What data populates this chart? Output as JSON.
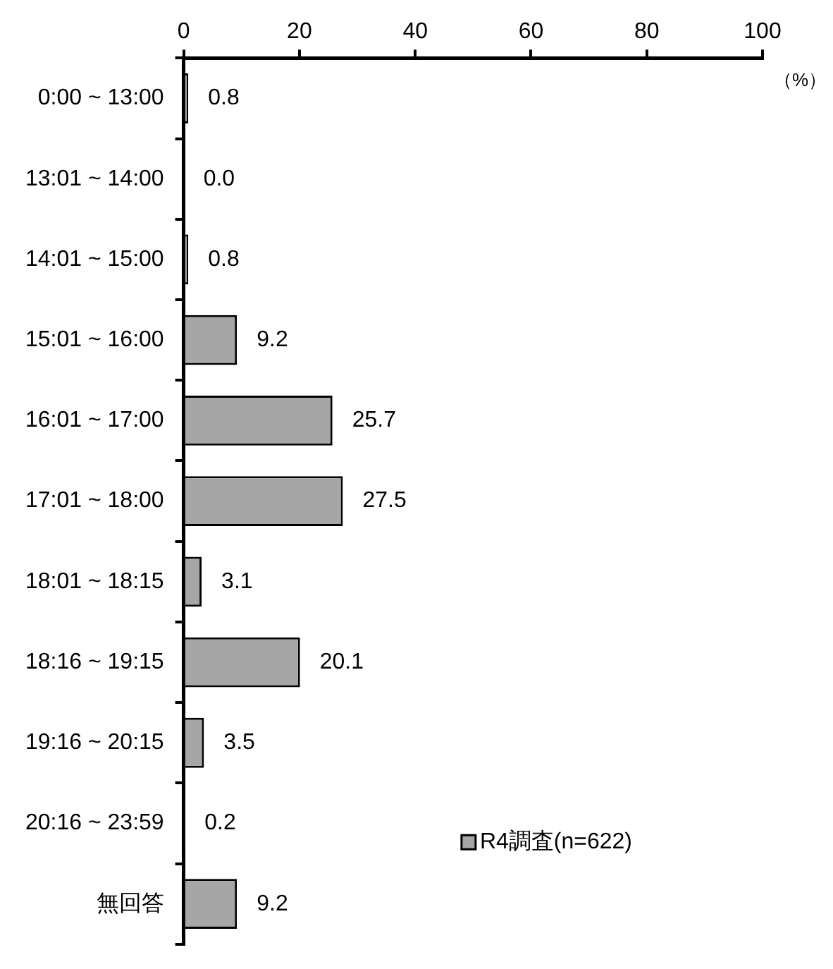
{
  "chart_data": {
    "type": "bar",
    "orientation": "horizontal",
    "xlabel": "（%）",
    "categories": [
      "0:00 ~ 13:00",
      "13:01 ~ 14:00",
      "14:01 ~ 15:00",
      "15:01 ~ 16:00",
      "16:01 ~ 17:00",
      "17:01 ~ 18:00",
      "18:01 ~ 18:15",
      "18:16 ~ 19:15",
      "19:16 ~ 20:15",
      "20:16 ~ 23:59",
      "無回答"
    ],
    "series": [
      {
        "name": "R4調査(n=622)",
        "color": "#a6a6a6",
        "values": [
          0.8,
          0.0,
          0.8,
          9.2,
          25.7,
          27.5,
          3.1,
          20.1,
          3.5,
          0.2,
          9.2
        ],
        "value_labels": [
          "0.8",
          "0.0",
          "0.8",
          "9.2",
          "25.7",
          "27.5",
          "3.1",
          "20.1",
          "3.5",
          "0.2",
          "9.2"
        ]
      }
    ],
    "xlim": [
      0,
      100
    ],
    "xticks": [
      0,
      20,
      40,
      60,
      80,
      100
    ],
    "grid": false,
    "legend": "bottom right"
  }
}
